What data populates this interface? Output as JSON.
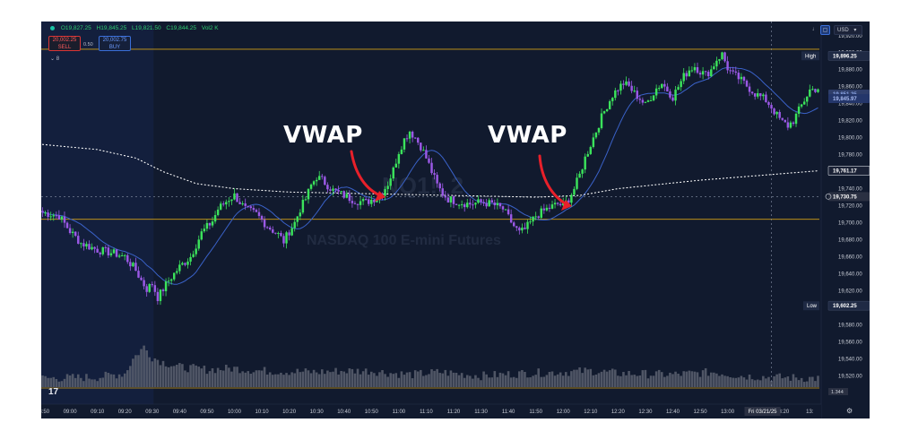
{
  "header": {
    "open": "O19,827.25",
    "high": "H19,845.25",
    "low": "L19,821.50",
    "close": "C19,844.25",
    "volume": "Vol2 K",
    "currency": "USD"
  },
  "order_panel": {
    "sell_price": "20,002.25",
    "sell_label": "SELL",
    "spread": "0.50",
    "buy_price": "20,002.75",
    "buy_label": "BUY",
    "collapse_count": "8"
  },
  "watermark": {
    "symbol": "NQ1!, 2",
    "name": "NASDAQ 100 E-mini Futures"
  },
  "annotations": [
    {
      "text": "VWAP"
    },
    {
      "text": "VWAP"
    }
  ],
  "colors": {
    "background": "#111a2e",
    "up": "#3be35b",
    "down": "#9b59e6",
    "vwap": "#ffffff",
    "ma": "#3a62c9",
    "high_line": "#d4a017",
    "arrow": "#e8202a",
    "volume": "#5c6170"
  },
  "chart_data": {
    "type": "candlestick",
    "ylim": [
      19515,
      19905
    ],
    "y_ticks": [
      "19,920.00",
      "19,900.00",
      "19,880.00",
      "19,860.00",
      "19,840.00",
      "19,820.00",
      "19,800.00",
      "19,780.00",
      "19,760.00",
      "19,740.00",
      "19,720.00",
      "19,700.00",
      "19,680.00",
      "19,660.00",
      "19,640.00",
      "19,620.00",
      "19,600.00",
      "19,580.00",
      "19,560.00",
      "19,540.00",
      "19,520.00"
    ],
    "y_tick_values": [
      19920,
      19900,
      19880,
      19860,
      19840,
      19820,
      19800,
      19780,
      19760,
      19740,
      19720,
      19700,
      19680,
      19660,
      19640,
      19620,
      19600,
      19580,
      19560,
      19540,
      19520
    ],
    "x_ticks": [
      "08:50",
      "09:00",
      "09:10",
      "09:20",
      "09:30",
      "09:40",
      "09:50",
      "10:00",
      "10:10",
      "10:20",
      "10:30",
      "10:40",
      "10:50",
      "11:00",
      "11:10",
      "11:20",
      "11:30",
      "11:40",
      "11:50",
      "12:00",
      "12:10",
      "12:20",
      "12:30",
      "12:40",
      "12:50",
      "13:00",
      "13:20",
      "13:"
    ],
    "x_tick_index": [
      0,
      10,
      20,
      30,
      40,
      50,
      60,
      70,
      80,
      90,
      100,
      110,
      120,
      130,
      140,
      150,
      160,
      170,
      180,
      190,
      200,
      210,
      220,
      230,
      240,
      250,
      270,
      280
    ],
    "crosshair_date": "Fri 03/21/25",
    "crosshair_index": 266,
    "levels": [
      {
        "name": "High",
        "value": 19896.25,
        "label": "19,896.25"
      },
      {
        "name": "Low",
        "value": 19602.25,
        "label": "19,602.25"
      },
      {
        "name": "",
        "value": 19761.17,
        "label": "19,761.17"
      },
      {
        "name": "",
        "value": 19730.75,
        "label": "19,730.75"
      },
      {
        "name": "",
        "value": 19845.97,
        "label": "19,845.97"
      },
      {
        "name": "",
        "value": 19851.25,
        "label": "19,851.25"
      }
    ],
    "price_line": 19704,
    "session_high_line": 19904,
    "volume_label": "1.344",
    "candles_n": 284,
    "keypoints": [
      [
        0,
        19712
      ],
      [
        6,
        19708
      ],
      [
        10,
        19690
      ],
      [
        14,
        19676
      ],
      [
        20,
        19668
      ],
      [
        26,
        19664
      ],
      [
        30,
        19660
      ],
      [
        34,
        19644
      ],
      [
        36,
        19632
      ],
      [
        38,
        19622
      ],
      [
        40,
        19628
      ],
      [
        42,
        19612
      ],
      [
        46,
        19632
      ],
      [
        50,
        19648
      ],
      [
        54,
        19660
      ],
      [
        58,
        19688
      ],
      [
        62,
        19702
      ],
      [
        64,
        19716
      ],
      [
        66,
        19722
      ],
      [
        68,
        19728
      ],
      [
        70,
        19732
      ],
      [
        72,
        19724
      ],
      [
        74,
        19716
      ],
      [
        78,
        19710
      ],
      [
        82,
        19696
      ],
      [
        86,
        19686
      ],
      [
        88,
        19678
      ],
      [
        90,
        19690
      ],
      [
        92,
        19700
      ],
      [
        94,
        19716
      ],
      [
        96,
        19728
      ],
      [
        98,
        19744
      ],
      [
        100,
        19754
      ],
      [
        102,
        19750
      ],
      [
        104,
        19744
      ],
      [
        106,
        19738
      ],
      [
        110,
        19732
      ],
      [
        114,
        19726
      ],
      [
        118,
        19724
      ],
      [
        122,
        19730
      ],
      [
        124,
        19736
      ],
      [
        126,
        19746
      ],
      [
        128,
        19762
      ],
      [
        130,
        19784
      ],
      [
        132,
        19798
      ],
      [
        134,
        19808
      ],
      [
        136,
        19800
      ],
      [
        138,
        19790
      ],
      [
        140,
        19776
      ],
      [
        142,
        19760
      ],
      [
        144,
        19744
      ],
      [
        146,
        19734
      ],
      [
        148,
        19728
      ],
      [
        152,
        19724
      ],
      [
        156,
        19722
      ],
      [
        160,
        19724
      ],
      [
        164,
        19722
      ],
      [
        168,
        19716
      ],
      [
        170,
        19706
      ],
      [
        172,
        19696
      ],
      [
        174,
        19688
      ],
      [
        176,
        19692
      ],
      [
        178,
        19700
      ],
      [
        180,
        19708
      ],
      [
        184,
        19716
      ],
      [
        188,
        19722
      ],
      [
        190,
        19720
      ],
      [
        192,
        19728
      ],
      [
        194,
        19740
      ],
      [
        196,
        19756
      ],
      [
        198,
        19776
      ],
      [
        200,
        19792
      ],
      [
        202,
        19808
      ],
      [
        204,
        19824
      ],
      [
        206,
        19838
      ],
      [
        208,
        19850
      ],
      [
        210,
        19858
      ],
      [
        212,
        19864
      ],
      [
        214,
        19860
      ],
      [
        216,
        19852
      ],
      [
        218,
        19846
      ],
      [
        220,
        19838
      ],
      [
        222,
        19848
      ],
      [
        224,
        19858
      ],
      [
        226,
        19864
      ],
      [
        228,
        19856
      ],
      [
        230,
        19848
      ],
      [
        232,
        19860
      ],
      [
        234,
        19872
      ],
      [
        236,
        19880
      ],
      [
        238,
        19884
      ],
      [
        240,
        19878
      ],
      [
        242,
        19874
      ],
      [
        244,
        19880
      ],
      [
        246,
        19892
      ],
      [
        248,
        19898
      ],
      [
        250,
        19882
      ],
      [
        252,
        19874
      ],
      [
        254,
        19870
      ],
      [
        256,
        19864
      ],
      [
        258,
        19858
      ],
      [
        260,
        19852
      ],
      [
        262,
        19848
      ],
      [
        264,
        19844
      ],
      [
        266,
        19836
      ],
      [
        268,
        19826
      ],
      [
        270,
        19818
      ],
      [
        272,
        19814
      ],
      [
        274,
        19820
      ],
      [
        276,
        19832
      ],
      [
        278,
        19844
      ],
      [
        280,
        19856
      ],
      [
        283,
        19858
      ]
    ],
    "volume_keypoints": [
      [
        0,
        14
      ],
      [
        20,
        16
      ],
      [
        30,
        22
      ],
      [
        33,
        45
      ],
      [
        35,
        55
      ],
      [
        37,
        64
      ],
      [
        40,
        48
      ],
      [
        44,
        40
      ],
      [
        50,
        32
      ],
      [
        60,
        28
      ],
      [
        70,
        30
      ],
      [
        80,
        26
      ],
      [
        90,
        25
      ],
      [
        100,
        24
      ],
      [
        110,
        26
      ],
      [
        120,
        26
      ],
      [
        128,
        22
      ],
      [
        135,
        20
      ],
      [
        145,
        24
      ],
      [
        160,
        18
      ],
      [
        175,
        22
      ],
      [
        190,
        24
      ],
      [
        200,
        26
      ],
      [
        210,
        22
      ],
      [
        230,
        20
      ],
      [
        245,
        24
      ],
      [
        255,
        18
      ],
      [
        265,
        16
      ],
      [
        283,
        14
      ]
    ],
    "volume_max": 100
  }
}
